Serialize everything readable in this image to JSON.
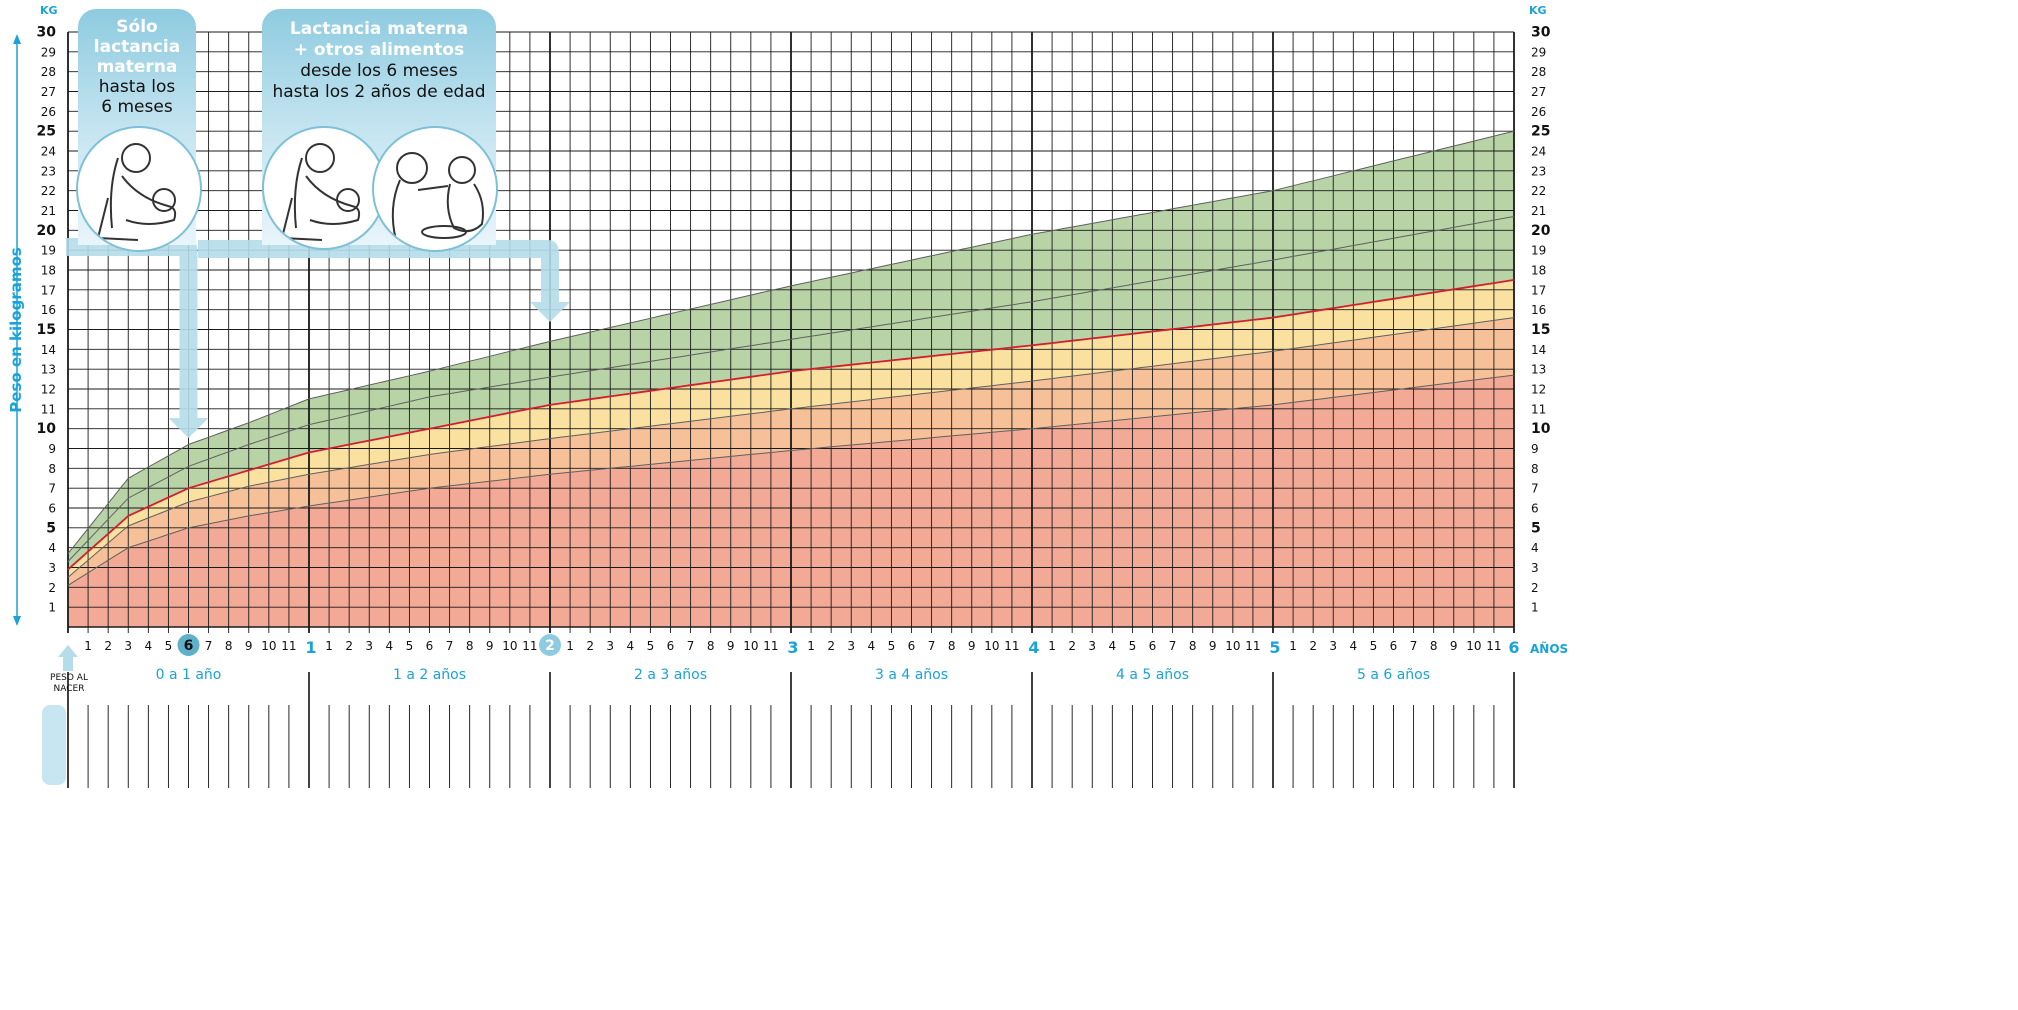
{
  "chart_data": {
    "type": "area",
    "title": "",
    "ylabel": "Peso en kilogramos",
    "unit_left": "KG",
    "unit_right": "KG",
    "x_unit_label": "AÑOS",
    "ylim": [
      0,
      30
    ],
    "xlim_months": [
      0,
      72
    ],
    "y_ticks": [
      1,
      2,
      3,
      4,
      5,
      6,
      7,
      8,
      9,
      10,
      11,
      12,
      13,
      14,
      15,
      16,
      17,
      18,
      19,
      20,
      21,
      22,
      23,
      24,
      25,
      26,
      27,
      28,
      29,
      30
    ],
    "y_ticks_bold": [
      5,
      10,
      15,
      20,
      25,
      30
    ],
    "year_labels": [
      "1",
      "2",
      "3",
      "4",
      "5",
      "6"
    ],
    "month_labels": [
      "1",
      "2",
      "3",
      "4",
      "5",
      "6",
      "7",
      "8",
      "9",
      "10",
      "11"
    ],
    "highlighted_ticks": [
      {
        "month": 6,
        "label": "6"
      },
      {
        "month": 24,
        "label": "2"
      }
    ],
    "birth_label": [
      "PESO AL",
      "NACER"
    ],
    "age_ranges": [
      "0 a 1 año",
      "1 a 2 años",
      "2 a 3 años",
      "3 a 4 años",
      "4 a 5 años",
      "5 a 6 años"
    ],
    "x_months": [
      0,
      3,
      6,
      9,
      12,
      18,
      24,
      36,
      48,
      60,
      72
    ],
    "series": [
      {
        "values": [
          2.1,
          4.0,
          5.0,
          5.6,
          6.1,
          7.0,
          7.7,
          8.9,
          10.0,
          11.2,
          12.7
        ],
        "color": "#606060"
      },
      {
        "values": [
          2.5,
          5.1,
          6.3,
          7.1,
          7.7,
          8.7,
          9.5,
          11.0,
          12.4,
          13.9,
          15.6
        ],
        "color": "#606060"
      },
      {
        "values": [
          2.9,
          5.6,
          7.0,
          7.9,
          8.8,
          10.0,
          11.2,
          12.9,
          14.2,
          15.6,
          17.5
        ],
        "color": "#d21f30"
      },
      {
        "values": [
          3.3,
          6.5,
          8.1,
          9.2,
          10.2,
          11.6,
          12.6,
          14.5,
          16.4,
          18.5,
          20.7
        ],
        "color": "#606060"
      },
      {
        "values": [
          3.7,
          7.5,
          9.2,
          10.3,
          11.5,
          12.9,
          14.4,
          17.2,
          19.8,
          22.0,
          25.0
        ],
        "color": "#606060"
      }
    ],
    "bands": [
      {
        "from": "baseline",
        "to": 0,
        "color": "#f2a995"
      },
      {
        "from": 0,
        "to": 1,
        "color": "#f6c199"
      },
      {
        "from": 1,
        "to": 2,
        "color": "#fbe1a0"
      },
      {
        "from": 2,
        "to": 4,
        "color": "#b8d4a7"
      }
    ],
    "annotations": {
      "exclusive": {
        "bold": [
          "Sólo",
          "lactancia",
          "materna"
        ],
        "plain": [
          "hasta los",
          "6 meses"
        ],
        "arrow_to_month": 6
      },
      "complementary": {
        "bold": [
          "Lactancia materna",
          "+ otros alimentos"
        ],
        "plain": [
          "desde los 6 meses",
          "hasta los 2 años de edad"
        ],
        "arrow_to_month": 24
      }
    }
  },
  "colors": {
    "accent": "#1aa3d9",
    "grid": "#1a1a1a",
    "arrow": "#b5dcea"
  }
}
